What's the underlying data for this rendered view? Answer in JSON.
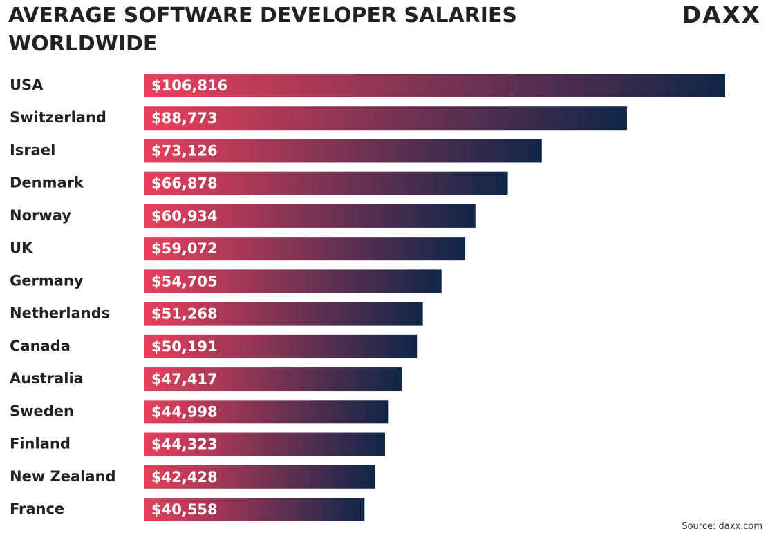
{
  "chart_data": {
    "type": "hbar",
    "title": "AVERAGE SOFTWARE DEVELOPER SALARIES WORLDWIDE",
    "logo": "DAXX",
    "source": "Source: daxx.com",
    "categories": [
      "USA",
      "Switzerland",
      "Israel",
      "Denmark",
      "Norway",
      "UK",
      "Germany",
      "Netherlands",
      "Canada",
      "Australia",
      "Sweden",
      "Finland",
      "New Zealand",
      "France"
    ],
    "values": [
      106816,
      88773,
      73126,
      66878,
      60934,
      59072,
      54705,
      51268,
      50191,
      47417,
      44998,
      44323,
      42428,
      40558
    ],
    "value_labels": [
      "$106,816",
      "$88,773",
      "$73,126",
      "$66,878",
      "$60,934",
      "$59,072",
      "$54,705",
      "$51,268",
      "$50,191",
      "$47,417",
      "$44,998",
      "$44,323",
      "$42,428",
      "$40,558"
    ],
    "xlim": [
      0,
      106816
    ],
    "gradient": [
      "#e8405c",
      "#0f2649"
    ]
  }
}
